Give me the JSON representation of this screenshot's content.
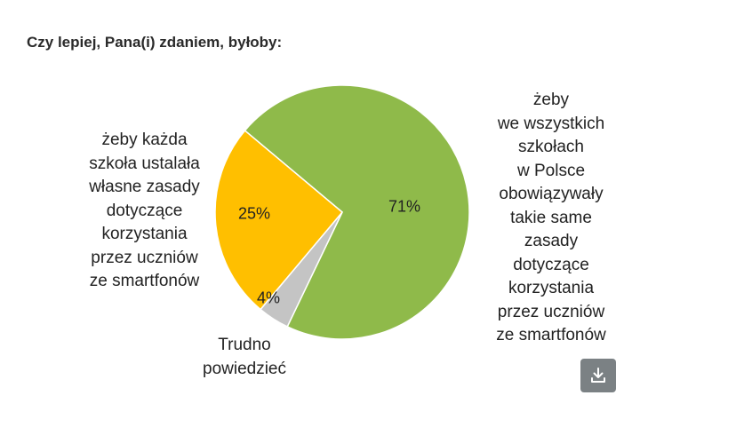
{
  "chart_data": {
    "type": "pie",
    "title": "Czy lepiej, Pana(i) zdaniem, byłoby:",
    "slices": [
      {
        "label": "żeby\nwe wszystkich\nszkołach\nw Polsce\nobowiązywały\ntakie same\nzasady\ndotyczące\nkorzystania\nprzez uczniów\nze smartfonów",
        "value": 71,
        "value_label": "71%",
        "color": "#8fba4a"
      },
      {
        "label": "Trudno\npowiedzieć",
        "value": 4,
        "value_label": "4%",
        "color": "#c4c4c4"
      },
      {
        "label": "żeby każda\nszkoła ustalała\nwłasne zasady\ndotyczące\nkorzystania\nprzez uczniów\nze smartfonów",
        "value": 25,
        "value_label": "25%",
        "color": "#ffbf00"
      }
    ]
  },
  "download": {
    "icon": "download-icon",
    "color": "#7b8184"
  }
}
